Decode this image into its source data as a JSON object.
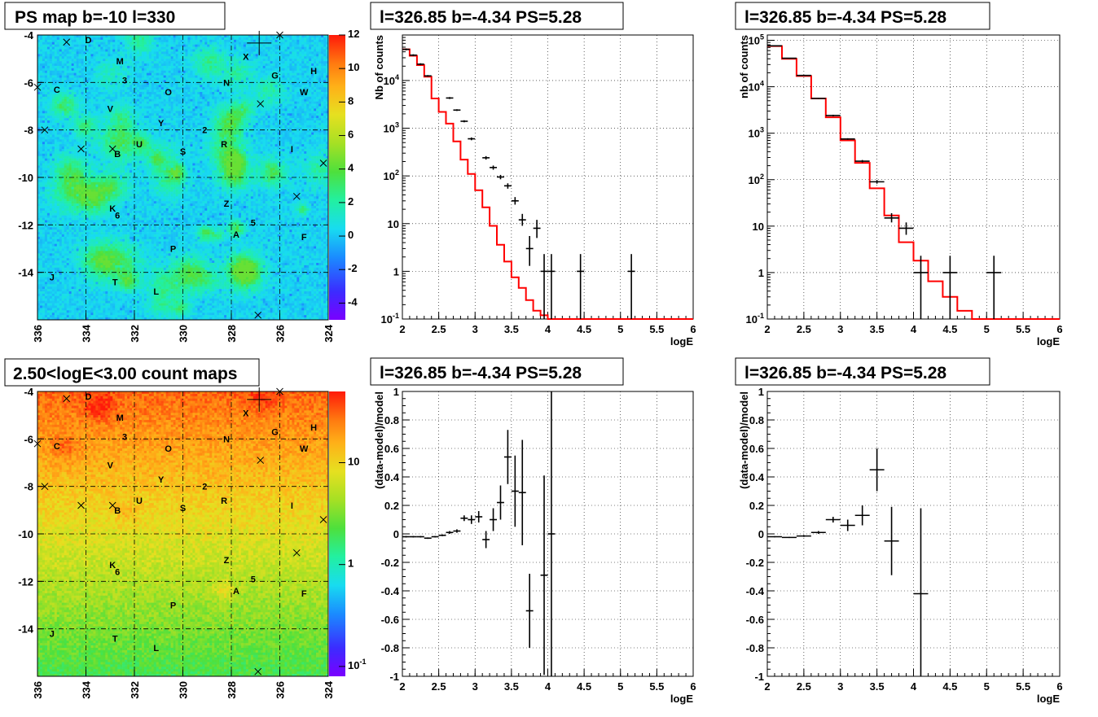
{
  "chart_data": [
    {
      "type": "heatmap",
      "id": "ps-map",
      "title": "PS map b=-10 l=330",
      "x_ticks": [
        "336",
        "334",
        "332",
        "330",
        "328",
        "326",
        "324"
      ],
      "x_range": [
        336,
        324
      ],
      "y_ticks": [
        "-4",
        "-6",
        "-8",
        "-10",
        "-12",
        "-14"
      ],
      "y_range": [
        -16,
        -4
      ],
      "colorbar_ticks": [
        "12",
        "10",
        "8",
        "6",
        "4",
        "2",
        "0",
        "-2",
        "-4"
      ],
      "colorbar_range": [
        -5,
        12
      ],
      "sources": [
        {
          "name": "D",
          "l": 333.9,
          "b": -4.2
        },
        {
          "name": "M",
          "l": 332.6,
          "b": -5.1
        },
        {
          "name": "3",
          "l": 332.4,
          "b": -5.9
        },
        {
          "name": "C",
          "l": 335.2,
          "b": -6.3
        },
        {
          "name": "V",
          "l": 333.0,
          "b": -7.1
        },
        {
          "name": "O",
          "l": 330.6,
          "b": -6.4
        },
        {
          "name": "X",
          "l": 327.4,
          "b": -4.9
        },
        {
          "name": "N",
          "l": 328.2,
          "b": -6.0
        },
        {
          "name": "G",
          "l": 326.2,
          "b": -5.7
        },
        {
          "name": "H",
          "l": 324.6,
          "b": -5.5
        },
        {
          "name": "W",
          "l": 325.0,
          "b": -6.4
        },
        {
          "name": "Y",
          "l": 330.9,
          "b": -7.7
        },
        {
          "name": "2",
          "l": 329.1,
          "b": -8.0
        },
        {
          "name": "U",
          "l": 331.8,
          "b": -8.6
        },
        {
          "name": "B",
          "l": 332.7,
          "b": -9.0
        },
        {
          "name": "S",
          "l": 330.0,
          "b": -8.9
        },
        {
          "name": "R",
          "l": 328.3,
          "b": -8.6
        },
        {
          "name": "I",
          "l": 325.5,
          "b": -8.8
        },
        {
          "name": "K",
          "l": 332.9,
          "b": -11.3
        },
        {
          "name": "6",
          "l": 332.7,
          "b": -11.6
        },
        {
          "name": "Z",
          "l": 328.2,
          "b": -11.1
        },
        {
          "name": "5",
          "l": 327.1,
          "b": -11.9
        },
        {
          "name": "A",
          "l": 327.8,
          "b": -12.4
        },
        {
          "name": "F",
          "l": 325.0,
          "b": -12.5
        },
        {
          "name": "P",
          "l": 330.4,
          "b": -13.0
        },
        {
          "name": "J",
          "l": 335.4,
          "b": -14.2
        },
        {
          "name": "T",
          "l": 332.8,
          "b": -14.4
        },
        {
          "name": "L",
          "l": 331.1,
          "b": -14.8
        }
      ],
      "crosses": [
        {
          "l": 334.8,
          "b": -4.3
        },
        {
          "l": 326.0,
          "b": -4.0
        },
        {
          "l": 336.0,
          "b": -6.2
        },
        {
          "l": 335.7,
          "b": -8.0
        },
        {
          "l": 334.2,
          "b": -8.8
        },
        {
          "l": 332.9,
          "b": -8.8
        },
        {
          "l": 326.8,
          "b": -6.9
        },
        {
          "l": 324.2,
          "b": -9.4
        },
        {
          "l": 325.3,
          "b": -10.8
        },
        {
          "l": 326.9,
          "b": -15.8
        }
      ],
      "big_source": {
        "l": 326.85,
        "b": -4.34
      }
    },
    {
      "type": "line",
      "id": "spec1",
      "title": "l=326.85 b=-4.34 PS=5.28",
      "xlabel": "logE",
      "ylabel": "Nb of counts",
      "x_range": [
        2,
        6
      ],
      "y_range": [
        0.1,
        90000
      ],
      "y_scale": "log",
      "x_ticks": [
        "2",
        "2.5",
        "3",
        "3.5",
        "4",
        "4.5",
        "5",
        "5.5",
        "6"
      ],
      "y_ticks": [
        {
          "v": 0.1,
          "l": "10^-1"
        },
        {
          "v": 1,
          "l": "1"
        },
        {
          "v": 10,
          "l": "10"
        },
        {
          "v": 100,
          "l": "10^2"
        },
        {
          "v": 1000,
          "l": "10^3"
        },
        {
          "v": 10000,
          "l": "10^4"
        }
      ],
      "model_color": "#ff0000",
      "bin_width": 0.1,
      "model": [
        45000,
        33000,
        21000,
        12000,
        4200,
        2200,
        1250,
        530,
        220,
        110,
        50,
        22,
        9,
        3.6,
        1.6,
        0.75,
        0.45,
        0.25,
        0.15,
        0.12,
        0.1
      ],
      "data": [
        {
          "x": 2.05,
          "y": 45000,
          "lo": 43000,
          "hi": 47000
        },
        {
          "x": 2.15,
          "y": 34000,
          "lo": 32500,
          "hi": 35500
        },
        {
          "x": 2.25,
          "y": 22000,
          "lo": 21000,
          "hi": 23000
        },
        {
          "x": 2.35,
          "y": 12500,
          "lo": 12000,
          "hi": 13000
        },
        {
          "x": 2.65,
          "y": 4300,
          "lo": 4100,
          "hi": 4500
        },
        {
          "x": 2.75,
          "y": 2400,
          "lo": 2300,
          "hi": 2500
        },
        {
          "x": 2.85,
          "y": 1400,
          "lo": 1330,
          "hi": 1470
        },
        {
          "x": 2.95,
          "y": 600,
          "lo": 560,
          "hi": 640
        },
        {
          "x": 3.15,
          "y": 240,
          "lo": 220,
          "hi": 260
        },
        {
          "x": 3.25,
          "y": 150,
          "lo": 135,
          "hi": 165
        },
        {
          "x": 3.35,
          "y": 95,
          "lo": 85,
          "hi": 105
        },
        {
          "x": 3.45,
          "y": 62,
          "lo": 54,
          "hi": 70
        },
        {
          "x": 3.55,
          "y": 30,
          "lo": 25,
          "hi": 36
        },
        {
          "x": 3.65,
          "y": 12,
          "lo": 9,
          "hi": 16
        },
        {
          "x": 3.75,
          "y": 3,
          "lo": 1.3,
          "hi": 5.5
        },
        {
          "x": 3.85,
          "y": 8,
          "lo": 5,
          "hi": 12
        },
        {
          "x": 3.95,
          "y": 1,
          "lo": 0.1,
          "hi": 2.3
        },
        {
          "x": 4.05,
          "y": 1,
          "lo": 0.1,
          "hi": 2.3
        },
        {
          "x": 4.45,
          "y": 1,
          "lo": 0.1,
          "hi": 2.3
        },
        {
          "x": 5.15,
          "y": 1,
          "lo": 0.1,
          "hi": 2.3
        }
      ]
    },
    {
      "type": "line",
      "id": "spec2",
      "title": "l=326.85 b=-4.34 PS=5.28",
      "xlabel": "logE",
      "ylabel": "nb of counts",
      "x_range": [
        2,
        6
      ],
      "y_range": [
        0.1,
        130000
      ],
      "y_scale": "log",
      "x_ticks": [
        "2",
        "2.5",
        "3",
        "3.5",
        "4",
        "4.5",
        "5",
        "5.5",
        "6"
      ],
      "y_ticks": [
        {
          "v": 0.1,
          "l": "10^-1"
        },
        {
          "v": 1,
          "l": "1"
        },
        {
          "v": 10,
          "l": "10"
        },
        {
          "v": 100,
          "l": "10^2"
        },
        {
          "v": 1000,
          "l": "10^3"
        },
        {
          "v": 10000,
          "l": "10^4"
        },
        {
          "v": 100000,
          "l": "10^5"
        }
      ],
      "model_color": "#ff0000",
      "bin_width": 0.2,
      "model": [
        75000,
        40000,
        17000,
        5600,
        2200,
        700,
        230,
        65,
        17,
        4.5,
        1.8,
        0.65,
        0.3,
        0.15,
        0.1,
        0.1,
        0.1,
        0.1
      ],
      "data": [
        {
          "x": 2.1,
          "y": 76000,
          "lo": 74000,
          "hi": 78000
        },
        {
          "x": 2.3,
          "y": 41000,
          "lo": 40000,
          "hi": 42000
        },
        {
          "x": 2.5,
          "y": 17500,
          "lo": 17000,
          "hi": 18000
        },
        {
          "x": 2.7,
          "y": 5600,
          "lo": 5450,
          "hi": 5750
        },
        {
          "x": 2.9,
          "y": 2400,
          "lo": 2300,
          "hi": 2500
        },
        {
          "x": 3.1,
          "y": 750,
          "lo": 720,
          "hi": 780
        },
        {
          "x": 3.3,
          "y": 250,
          "lo": 235,
          "hi": 265
        },
        {
          "x": 3.5,
          "y": 90,
          "lo": 82,
          "hi": 98
        },
        {
          "x": 3.7,
          "y": 15,
          "lo": 12,
          "hi": 19
        },
        {
          "x": 3.9,
          "y": 9,
          "lo": 6.5,
          "hi": 12
        },
        {
          "x": 4.1,
          "y": 1,
          "lo": 0.1,
          "hi": 2.3
        },
        {
          "x": 4.5,
          "y": 1,
          "lo": 0.1,
          "hi": 2.3
        },
        {
          "x": 5.1,
          "y": 1,
          "lo": 0.1,
          "hi": 2.3
        }
      ]
    },
    {
      "type": "heatmap",
      "id": "count-map",
      "title": "2.50<logE<3.00 count maps",
      "x_ticks": [
        "336",
        "334",
        "332",
        "330",
        "328",
        "326",
        "324"
      ],
      "x_range": [
        336,
        324
      ],
      "y_ticks": [
        "-4",
        "-6",
        "-8",
        "-10",
        "-12",
        "-14"
      ],
      "y_range": [
        -16,
        -4
      ],
      "colorbar_ticks": [
        {
          "v": 10,
          "l": "10"
        },
        {
          "v": 1,
          "l": "1"
        },
        {
          "v": 0.1,
          "l": "10^-1"
        }
      ],
      "colorbar_scale": "log"
    },
    {
      "type": "scatter",
      "id": "resid1",
      "title": "l=326.85 b=-4.34 PS=5.28",
      "xlabel": "logE",
      "ylabel": "(data-model)/model",
      "x_range": [
        2,
        6
      ],
      "y_range": [
        -1,
        1
      ],
      "x_ticks": [
        "2",
        "2.5",
        "3",
        "3.5",
        "4",
        "4.5",
        "5",
        "5.5",
        "6"
      ],
      "y_ticks": [
        "1",
        "0.8",
        "0.6",
        "0.4",
        "0.2",
        "0",
        "-0.2",
        "-0.4",
        "-0.6",
        "-0.8",
        "-1"
      ],
      "bin_width": 0.1,
      "points": [
        {
          "x": 2.05,
          "y": -0.02,
          "e": 0.005
        },
        {
          "x": 2.15,
          "y": -0.02,
          "e": 0.005
        },
        {
          "x": 2.25,
          "y": -0.02,
          "e": 0.005
        },
        {
          "x": 2.35,
          "y": -0.03,
          "e": 0.005
        },
        {
          "x": 2.45,
          "y": -0.02,
          "e": 0.005
        },
        {
          "x": 2.55,
          "y": -0.01,
          "e": 0.006
        },
        {
          "x": 2.65,
          "y": 0.01,
          "e": 0.01
        },
        {
          "x": 2.75,
          "y": 0.02,
          "e": 0.012
        },
        {
          "x": 2.85,
          "y": 0.11,
          "e": 0.02
        },
        {
          "x": 2.95,
          "y": 0.1,
          "e": 0.03
        },
        {
          "x": 3.05,
          "y": 0.12,
          "e": 0.04
        },
        {
          "x": 3.15,
          "y": -0.04,
          "e": 0.06
        },
        {
          "x": 3.25,
          "y": 0.1,
          "e": 0.08
        },
        {
          "x": 3.35,
          "y": 0.22,
          "e": 0.12
        },
        {
          "x": 3.45,
          "y": 0.54,
          "e": 0.19
        },
        {
          "x": 3.55,
          "y": 0.3,
          "e": 0.25
        },
        {
          "x": 3.65,
          "y": 0.29,
          "e": 0.37
        },
        {
          "x": 3.75,
          "y": -0.54,
          "e": 0.26
        },
        {
          "x": 3.95,
          "y": -0.29,
          "e": 0.7
        },
        {
          "x": 4.05,
          "y": 0.0,
          "e": 1.2
        }
      ]
    },
    {
      "type": "scatter",
      "id": "resid2",
      "title": "l=326.85 b=-4.34 PS=5.28",
      "xlabel": "logE",
      "ylabel": "(data-model)/model",
      "x_range": [
        2,
        6
      ],
      "y_range": [
        -1,
        1
      ],
      "x_ticks": [
        "2",
        "2.5",
        "3",
        "3.5",
        "4",
        "4.5",
        "5",
        "5.5",
        "6"
      ],
      "y_ticks": [
        "1",
        "0.8",
        "0.6",
        "0.4",
        "0.2",
        "0",
        "-0.2",
        "-0.4",
        "-0.6",
        "-0.8",
        "-1"
      ],
      "bin_width": 0.2,
      "points": [
        {
          "x": 2.1,
          "y": -0.02,
          "e": 0.004
        },
        {
          "x": 2.3,
          "y": -0.025,
          "e": 0.004
        },
        {
          "x": 2.5,
          "y": -0.015,
          "e": 0.006
        },
        {
          "x": 2.7,
          "y": 0.01,
          "e": 0.01
        },
        {
          "x": 2.9,
          "y": 0.1,
          "e": 0.02
        },
        {
          "x": 3.1,
          "y": 0.06,
          "e": 0.04
        },
        {
          "x": 3.3,
          "y": 0.13,
          "e": 0.07
        },
        {
          "x": 3.5,
          "y": 0.45,
          "e": 0.15
        },
        {
          "x": 3.7,
          "y": -0.05,
          "e": 0.24
        },
        {
          "x": 4.1,
          "y": -0.42,
          "e": 0.6
        }
      ]
    }
  ]
}
